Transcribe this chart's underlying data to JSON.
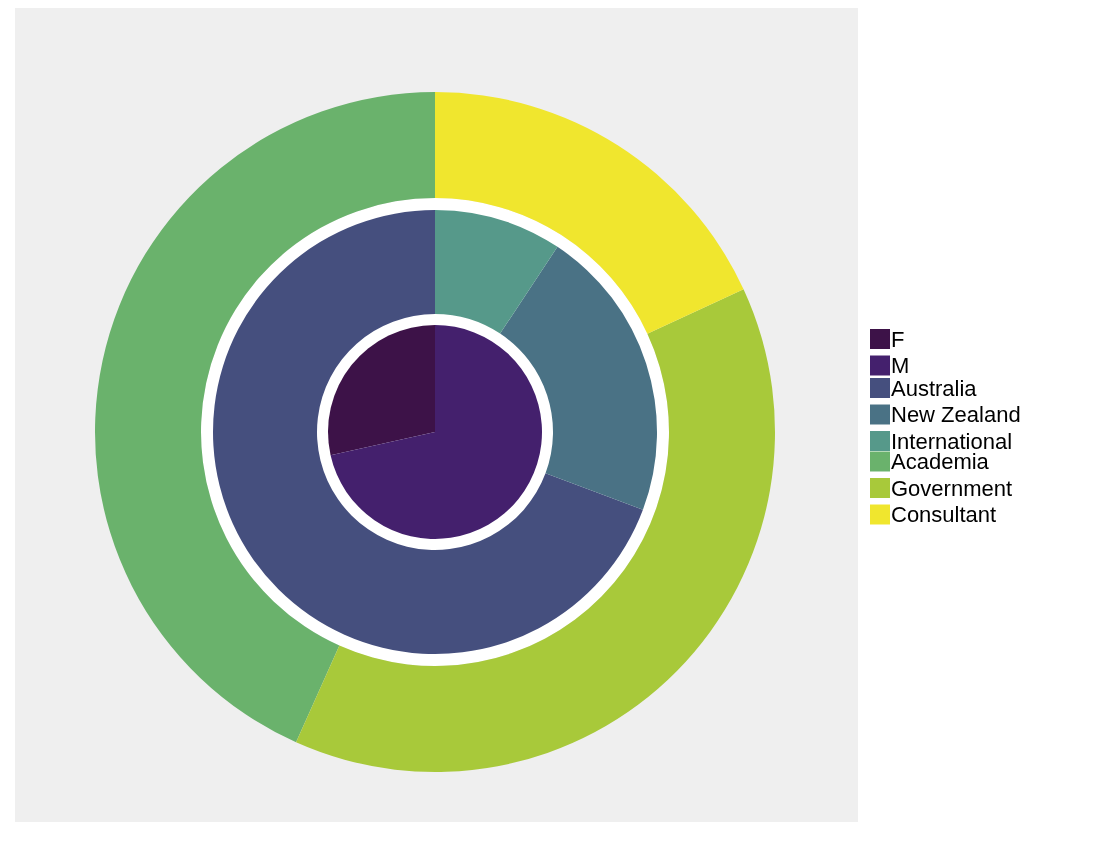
{
  "chart_data": [
    {
      "type": "pie",
      "categories": [
        "F",
        "M"
      ],
      "values": [
        28.5,
        71.5
      ],
      "colors": [
        "#3d1248",
        "#44206d"
      ],
      "legend": "right"
    },
    {
      "type": "donut",
      "categories": [
        "Australia",
        "New Zealand",
        "International"
      ],
      "values": [
        69.3,
        21.4,
        9.3
      ],
      "colors": [
        "#454f7e",
        "#4a7285",
        "#56998a"
      ],
      "legend": "right"
    },
    {
      "type": "donut",
      "categories": [
        "Academia",
        "Government",
        "Consultant"
      ],
      "values": [
        43.3,
        38.6,
        18.1
      ],
      "colors": [
        "#6ab26c",
        "#a8c93a",
        "#f0e62e"
      ],
      "legend": "right"
    }
  ]
}
